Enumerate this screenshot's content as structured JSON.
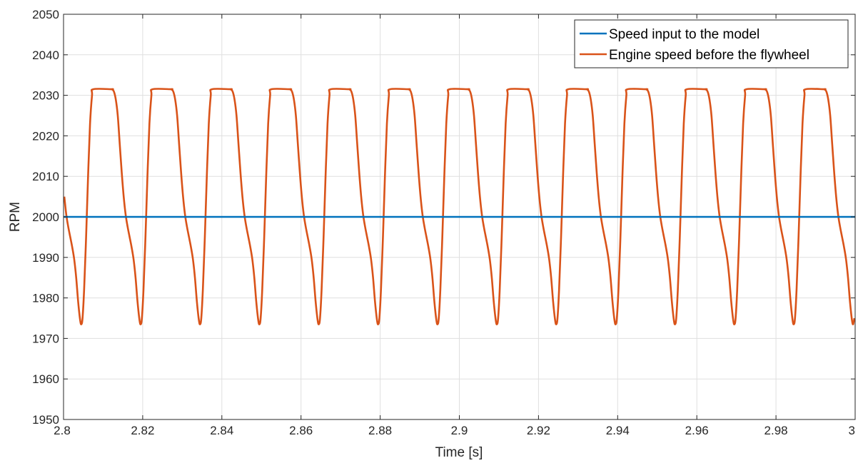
{
  "chart_data": {
    "type": "line",
    "title": "",
    "xlabel": "Time [s]",
    "ylabel": "RPM",
    "xlim": [
      2.8,
      3.0
    ],
    "ylim": [
      1950,
      2050
    ],
    "x_ticks": [
      2.8,
      2.82,
      2.84,
      2.86,
      2.88,
      2.9,
      2.92,
      2.94,
      2.96,
      2.98,
      3.0
    ],
    "x_tick_labels": [
      "2.8",
      "2.82",
      "2.84",
      "2.86",
      "2.88",
      "2.9",
      "2.92",
      "2.94",
      "2.96",
      "2.98",
      "3"
    ],
    "y_ticks": [
      1950,
      1960,
      1970,
      1980,
      1990,
      2000,
      2010,
      2020,
      2030,
      2040,
      2050
    ],
    "y_tick_labels": [
      "1950",
      "1960",
      "1970",
      "1980",
      "1990",
      "2000",
      "2010",
      "2020",
      "2030",
      "2040",
      "2050"
    ],
    "grid": true,
    "legend_position": "top-right",
    "series": [
      {
        "name": "Speed input to the model",
        "color": "#0072BD",
        "x": [
          2.8,
          3.0
        ],
        "y": [
          2000,
          2000
        ]
      },
      {
        "name": "Engine speed before the flywheel",
        "color": "#D95319",
        "period": 0.015,
        "cycle_shape": [
          [
            0.0,
            2031.5
          ],
          [
            0.5,
            2031.0
          ],
          [
            1.0,
            2029.0
          ],
          [
            1.5,
            2025.0
          ],
          [
            2.0,
            2018.0
          ],
          [
            2.5,
            2011.0
          ],
          [
            3.0,
            2005.0
          ],
          [
            3.5,
            2000.5
          ],
          [
            4.0,
            1997.5
          ],
          [
            4.5,
            1995.0
          ],
          [
            5.0,
            1992.5
          ],
          [
            5.5,
            1989.5
          ],
          [
            6.0,
            1985.0
          ],
          [
            6.5,
            1979.0
          ],
          [
            7.0,
            1974.5
          ],
          [
            7.3,
            1973.5
          ],
          [
            7.6,
            1975.0
          ],
          [
            8.0,
            1982.0
          ],
          [
            8.5,
            1995.0
          ],
          [
            9.0,
            2010.0
          ],
          [
            9.5,
            2023.0
          ],
          [
            10.0,
            2030.0
          ],
          [
            10.3,
            2031.5
          ],
          [
            15.0,
            2031.5
          ]
        ],
        "peak_times": [
          2.8122,
          2.8272,
          2.8422,
          2.8572,
          2.8722,
          2.8872,
          2.9022,
          2.9172,
          2.9322,
          2.9472,
          2.9622,
          2.9772,
          2.9922
        ],
        "peak_value": 2031.5,
        "trough_value": 1973.5
      }
    ]
  }
}
